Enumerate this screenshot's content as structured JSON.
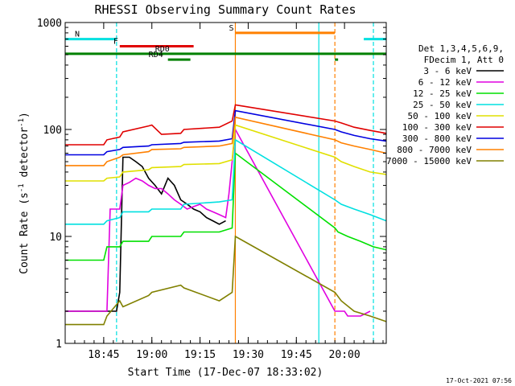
{
  "chart_data": {
    "type": "line",
    "title": "RHESSI Observing Summary Count Rates",
    "xlabel": "Start Time (17-Dec-07 18:33:02)",
    "ylabel": "Count Rate (s",
    "ylabel_sup1": "-1",
    "ylabel_mid": " detector",
    "ylabel_sup2": "-1",
    "ylabel_end": ")",
    "yscale": "log",
    "ylim": [
      1,
      1000
    ],
    "xlim_minutes": [
      0,
      100
    ],
    "x_ticks": [
      {
        "label": "18:45",
        "min": 12
      },
      {
        "label": "19:00",
        "min": 27
      },
      {
        "label": "19:15",
        "min": 42
      },
      {
        "label": "19:30",
        "min": 57
      },
      {
        "label": "19:45",
        "min": 72
      },
      {
        "label": "20:00",
        "min": 87
      }
    ],
    "y_ticks": [
      {
        "label": "1",
        "value": 1
      },
      {
        "label": "10",
        "value": 10
      },
      {
        "label": "100",
        "value": 100
      },
      {
        "label": "1000",
        "value": 1000
      }
    ],
    "legend_header": [
      "Det 1,3,4,5,6,9,",
      "FDecim 1, Att 0"
    ],
    "legend_placement": "right",
    "series": [
      {
        "name": "3 - 6 keV",
        "color": "#000000",
        "points": [
          [
            0,
            2
          ],
          [
            16,
            2
          ],
          [
            17,
            3
          ],
          [
            18,
            55
          ],
          [
            20,
            55
          ],
          [
            22,
            50
          ],
          [
            24,
            45
          ],
          [
            26,
            35
          ],
          [
            28,
            30
          ],
          [
            30,
            25
          ],
          [
            32,
            35
          ],
          [
            34,
            30
          ],
          [
            36,
            22
          ],
          [
            38,
            20
          ],
          [
            40,
            18
          ],
          [
            42,
            17
          ],
          [
            44,
            15
          ],
          [
            46,
            14
          ],
          [
            48,
            13
          ],
          [
            50,
            14
          ]
        ]
      },
      {
        "name": "6 - 12 keV",
        "color": "#e000e0",
        "points": [
          [
            0,
            2
          ],
          [
            13,
            2
          ],
          [
            14,
            18
          ],
          [
            17,
            18
          ],
          [
            18,
            30
          ],
          [
            20,
            32
          ],
          [
            22,
            35
          ],
          [
            24,
            33
          ],
          [
            26,
            30
          ],
          [
            28,
            28
          ],
          [
            30,
            28
          ],
          [
            32,
            25
          ],
          [
            34,
            22
          ],
          [
            36,
            20
          ],
          [
            38,
            18
          ],
          [
            40,
            19
          ],
          [
            42,
            20
          ],
          [
            44,
            18
          ],
          [
            46,
            17
          ],
          [
            48,
            16
          ],
          [
            50,
            15
          ],
          [
            51,
            25
          ],
          [
            52,
            50
          ],
          [
            53,
            100
          ],
          [
            84,
            2
          ],
          [
            85,
            2
          ],
          [
            86,
            2
          ],
          [
            87,
            2
          ],
          [
            88,
            1.8
          ],
          [
            92,
            1.8
          ],
          [
            95,
            2
          ]
        ]
      },
      {
        "name": "12 - 25 keV",
        "color": "#00e000",
        "points": [
          [
            0,
            6
          ],
          [
            12,
            6
          ],
          [
            13,
            8
          ],
          [
            17,
            8
          ],
          [
            18,
            9
          ],
          [
            26,
            9
          ],
          [
            27,
            10
          ],
          [
            36,
            10
          ],
          [
            37,
            11
          ],
          [
            48,
            11
          ],
          [
            52,
            12
          ],
          [
            53,
            60
          ],
          [
            84,
            12
          ],
          [
            85,
            11
          ],
          [
            88,
            10
          ],
          [
            92,
            9
          ],
          [
            96,
            8
          ],
          [
            100,
            7.5
          ]
        ]
      },
      {
        "name": "25 - 50 keV",
        "color": "#00e0e0",
        "points": [
          [
            0,
            13
          ],
          [
            12,
            13
          ],
          [
            13,
            14
          ],
          [
            17,
            15
          ],
          [
            18,
            17
          ],
          [
            26,
            17
          ],
          [
            27,
            18
          ],
          [
            36,
            18
          ],
          [
            37,
            20
          ],
          [
            48,
            21
          ],
          [
            52,
            22
          ],
          [
            53,
            80
          ],
          [
            84,
            22
          ],
          [
            86,
            20
          ],
          [
            90,
            18
          ],
          [
            95,
            16
          ],
          [
            100,
            14
          ]
        ]
      },
      {
        "name": "50 - 100 keV",
        "color": "#e0e000",
        "points": [
          [
            0,
            33
          ],
          [
            12,
            33
          ],
          [
            13,
            35
          ],
          [
            17,
            36
          ],
          [
            18,
            40
          ],
          [
            26,
            42
          ],
          [
            27,
            44
          ],
          [
            36,
            45
          ],
          [
            37,
            47
          ],
          [
            48,
            48
          ],
          [
            52,
            52
          ],
          [
            53,
            110
          ],
          [
            84,
            55
          ],
          [
            86,
            50
          ],
          [
            90,
            45
          ],
          [
            95,
            40
          ],
          [
            100,
            38
          ]
        ]
      },
      {
        "name": "100 - 300 keV",
        "color": "#e00000",
        "points": [
          [
            0,
            72
          ],
          [
            12,
            72
          ],
          [
            13,
            80
          ],
          [
            17,
            85
          ],
          [
            18,
            95
          ],
          [
            26,
            108
          ],
          [
            27,
            110
          ],
          [
            30,
            90
          ],
          [
            36,
            92
          ],
          [
            37,
            100
          ],
          [
            48,
            105
          ],
          [
            52,
            120
          ],
          [
            53,
            170
          ],
          [
            84,
            120
          ],
          [
            86,
            115
          ],
          [
            90,
            105
          ],
          [
            95,
            98
          ],
          [
            100,
            92
          ]
        ]
      },
      {
        "name": "300 - 800 keV",
        "color": "#0000e0",
        "points": [
          [
            0,
            58
          ],
          [
            12,
            58
          ],
          [
            13,
            62
          ],
          [
            17,
            65
          ],
          [
            18,
            68
          ],
          [
            26,
            70
          ],
          [
            27,
            72
          ],
          [
            36,
            74
          ],
          [
            37,
            76
          ],
          [
            48,
            78
          ],
          [
            52,
            82
          ],
          [
            53,
            150
          ],
          [
            84,
            100
          ],
          [
            86,
            95
          ],
          [
            90,
            88
          ],
          [
            95,
            82
          ],
          [
            100,
            78
          ]
        ]
      },
      {
        "name": "800 - 7000 keV",
        "color": "#ff8000",
        "points": [
          [
            0,
            46
          ],
          [
            12,
            46
          ],
          [
            13,
            50
          ],
          [
            17,
            55
          ],
          [
            18,
            58
          ],
          [
            26,
            62
          ],
          [
            27,
            65
          ],
          [
            36,
            66
          ],
          [
            37,
            68
          ],
          [
            48,
            70
          ],
          [
            52,
            74
          ],
          [
            53,
            130
          ],
          [
            84,
            80
          ],
          [
            86,
            75
          ],
          [
            90,
            70
          ],
          [
            95,
            65
          ],
          [
            100,
            60
          ]
        ]
      },
      {
        "name": "7000 - 15000 keV",
        "color": "#808000",
        "points": [
          [
            0,
            1.5
          ],
          [
            12,
            1.5
          ],
          [
            13,
            1.8
          ],
          [
            17,
            2.5
          ],
          [
            18,
            2.2
          ],
          [
            26,
            2.8
          ],
          [
            27,
            3
          ],
          [
            36,
            3.5
          ],
          [
            37,
            3.3
          ],
          [
            48,
            2.5
          ],
          [
            52,
            3
          ],
          [
            53,
            10
          ],
          [
            84,
            3
          ],
          [
            86,
            2.5
          ],
          [
            90,
            2
          ],
          [
            95,
            1.8
          ],
          [
            100,
            1.6
          ]
        ]
      }
    ],
    "flags": [
      {
        "label": "N",
        "color": "#00e0e0",
        "intervals": [
          [
            0,
            16
          ],
          [
            93,
            100
          ]
        ],
        "level": 700
      },
      {
        "label": "F",
        "color": "#e00000",
        "intervals": [
          [
            17,
            40
          ]
        ],
        "level": 600
      },
      {
        "label": "S",
        "color": "#ff8000",
        "intervals": [
          [
            53,
            84
          ]
        ],
        "level": 800
      },
      {
        "label": "RD0",
        "color": "#008000",
        "intervals": [
          [
            0,
            100
          ]
        ],
        "level": 510
      },
      {
        "label": "RD4",
        "color": "#008000",
        "intervals": [
          [
            32,
            39
          ],
          [
            84,
            85
          ]
        ],
        "level": 450
      }
    ],
    "vertical_markers": [
      {
        "min": 16,
        "color": "#00e0e0",
        "style": "dashed"
      },
      {
        "min": 53,
        "color": "#ff8000",
        "style": "solid"
      },
      {
        "min": 79,
        "color": "#00e0e0",
        "style": "solid"
      },
      {
        "min": 84,
        "color": "#ff8000",
        "style": "dashed"
      },
      {
        "min": 96,
        "color": "#00e0e0",
        "style": "dashed"
      }
    ],
    "grid": false
  },
  "footer_timestamp": "17-Oct-2021 07:56"
}
